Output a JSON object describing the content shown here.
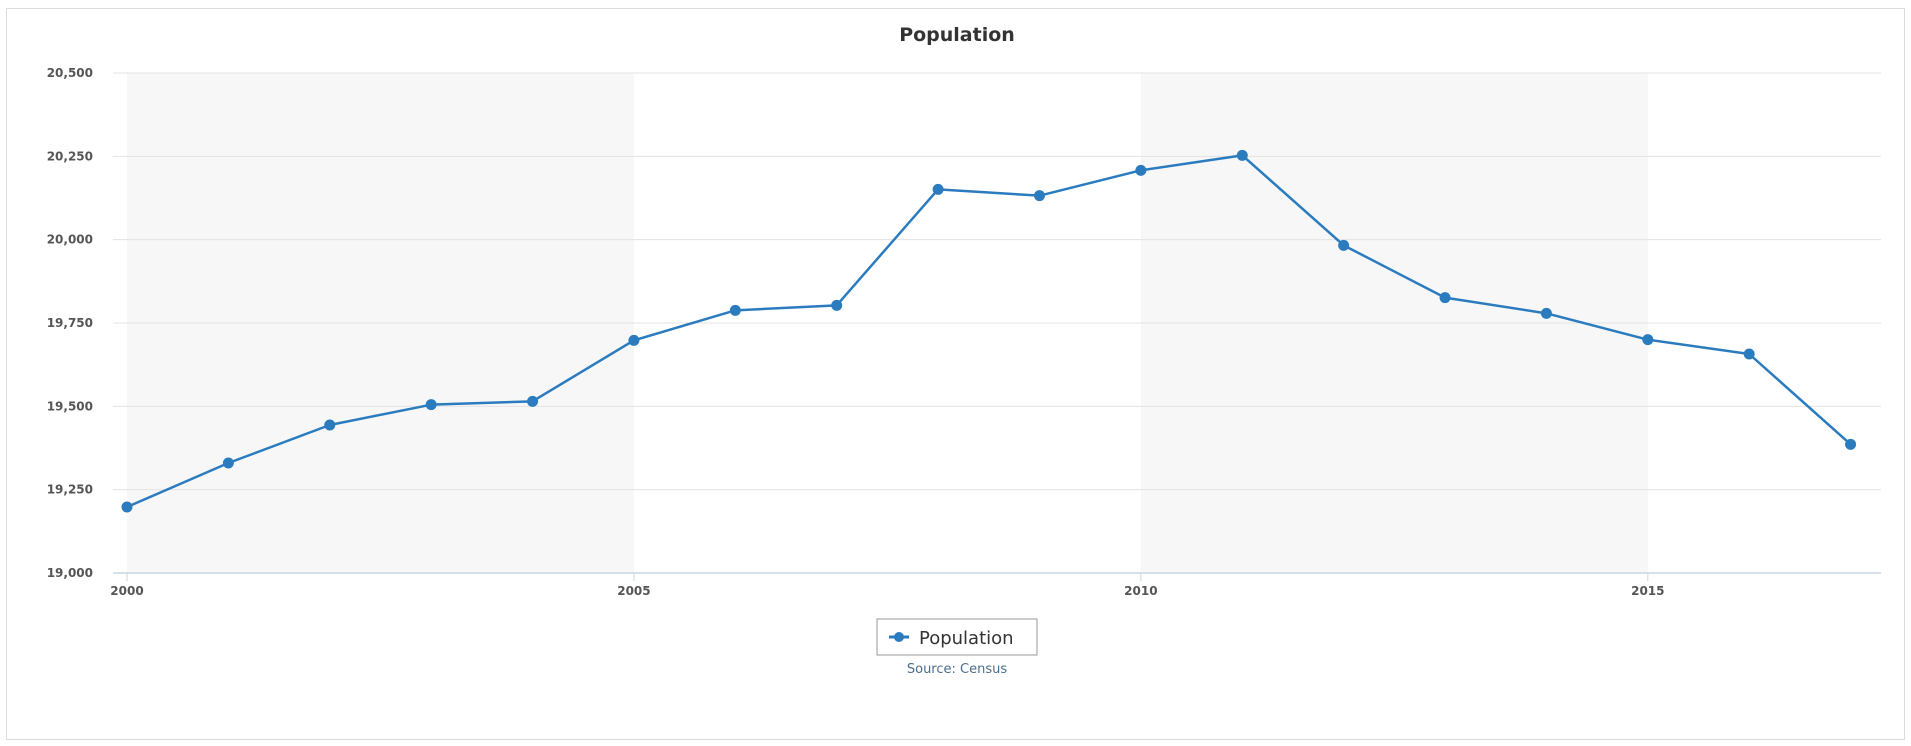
{
  "chart_data": {
    "type": "line",
    "title": "Population",
    "xlabel": "",
    "ylabel": "",
    "x": [
      2000,
      2001,
      2002,
      2003,
      2004,
      2005,
      2006,
      2007,
      2008,
      2009,
      2010,
      2011,
      2012,
      2013,
      2014,
      2015,
      2016,
      2017
    ],
    "series": [
      {
        "name": "Population",
        "color": "#2b7bbf",
        "values": [
          19198,
          19330,
          19444,
          19505,
          19515,
          19698,
          19788,
          19803,
          20151,
          20132,
          20208,
          20253,
          19983,
          19826,
          19779,
          19700,
          19657,
          19386
        ]
      }
    ],
    "ylim": [
      19000,
      20500
    ],
    "xlim": [
      2000,
      2017.3
    ],
    "y_ticks": [
      "19,000",
      "19,250",
      "19,500",
      "19,750",
      "20,000",
      "20,250",
      "20,500"
    ],
    "y_tick_values": [
      19000,
      19250,
      19500,
      19750,
      20000,
      20250,
      20500
    ],
    "x_ticks": [
      "2000",
      "2005",
      "2010",
      "2015"
    ],
    "x_tick_values": [
      2000,
      2005,
      2010,
      2015
    ],
    "alternate_bands": [
      [
        2000,
        2005
      ],
      [
        2010,
        2015
      ]
    ],
    "grid": true,
    "legend": {
      "position": "bottom-center",
      "label": "Population"
    },
    "credit": "Source: Census"
  }
}
